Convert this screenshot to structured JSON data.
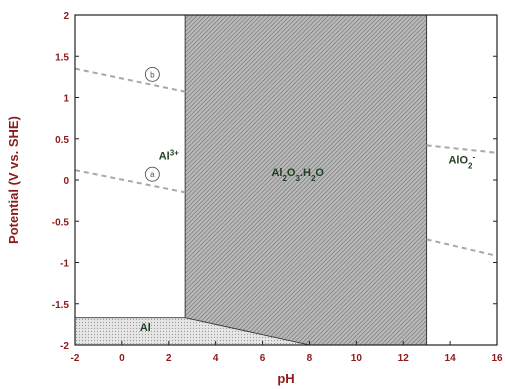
{
  "chart_data": {
    "type": "area",
    "xlabel": "pH",
    "ylabel": "Potential (V vs. SHE)",
    "xlim": [
      -2,
      16
    ],
    "ylim": [
      -2,
      2
    ],
    "x_ticks": [
      "-2",
      "0",
      "2",
      "4",
      "6",
      "8",
      "10",
      "12",
      "14",
      "16"
    ],
    "y_ticks": [
      "2",
      "1.5",
      "1",
      "0.5",
      "0",
      "-0.5",
      "-1",
      "-1.5",
      "-2"
    ],
    "regions": [
      {
        "label": "Al",
        "sup": "3+",
        "sub": "",
        "label_pos": [
          2,
          0.25
        ],
        "fill": "#ffffff",
        "polygon": [
          [
            -2,
            2
          ],
          [
            2.7,
            2
          ],
          [
            2.7,
            -1.67
          ],
          [
            -2,
            -1.67
          ]
        ]
      },
      {
        "label": "Al2O3.H2O",
        "label_parts": [
          [
            "Al",
            ""
          ],
          [
            "2",
            "sub"
          ],
          [
            "O",
            ""
          ],
          [
            "3",
            "sub"
          ],
          [
            ".H",
            ""
          ],
          [
            "2",
            "sub"
          ],
          [
            "O",
            ""
          ]
        ],
        "label_pos": [
          7.5,
          0.05
        ],
        "fill": "hatch",
        "polygon": [
          [
            2.7,
            2
          ],
          [
            13,
            2
          ],
          [
            13,
            -2
          ],
          [
            8,
            -2
          ],
          [
            2.7,
            -1.67
          ]
        ]
      },
      {
        "label": "AlO2-",
        "label_parts": [
          [
            "AlO",
            ""
          ],
          [
            "2",
            "sub"
          ],
          [
            "-",
            "sup"
          ]
        ],
        "label_pos": [
          14.5,
          0.2
        ],
        "fill": "#ffffff",
        "polygon": [
          [
            13,
            2
          ],
          [
            16,
            2
          ],
          [
            16,
            -2
          ],
          [
            13,
            -2
          ]
        ]
      },
      {
        "label": "Al",
        "label_parts": [
          [
            "Al",
            ""
          ]
        ],
        "label_pos": [
          1,
          -1.83
        ],
        "fill": "dots",
        "polygon": [
          [
            -2,
            -1.67
          ],
          [
            2.7,
            -1.67
          ],
          [
            8,
            -2
          ],
          [
            -2,
            -2
          ]
        ]
      }
    ],
    "dashed_lines": [
      {
        "name": "b",
        "x": [
          -2,
          2.7
        ],
        "y": [
          1.35,
          1.07
        ],
        "label_at": [
          -2,
          0
        ],
        "label_x": 1.3,
        "label_y": 1.28
      },
      {
        "name": "b",
        "x": [
          13,
          16
        ],
        "y": [
          0.42,
          0.33
        ],
        "label_x": null,
        "label_y": null
      },
      {
        "name": "a",
        "x": [
          -2,
          2.7
        ],
        "y": [
          0.12,
          -0.15
        ],
        "label_x": 1.3,
        "label_y": 0.06
      },
      {
        "name": "a",
        "x": [
          13,
          16
        ],
        "y": [
          -0.72,
          -0.92
        ],
        "label_x": null,
        "label_y": null
      }
    ],
    "circle_labels": [
      {
        "text": "b",
        "x": 1.3,
        "y": 1.28
      },
      {
        "text": "a",
        "x": 1.3,
        "y": 0.07
      }
    ]
  }
}
